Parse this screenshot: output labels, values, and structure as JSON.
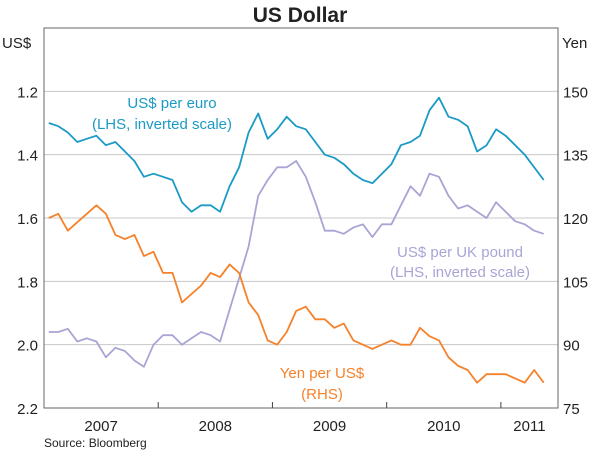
{
  "chart_data": {
    "type": "line",
    "title": "US Dollar",
    "source": "Source: Bloomberg",
    "left_axis": {
      "unit": "US$",
      "range": [
        1.0,
        2.2
      ],
      "inverted": true,
      "ticks": [
        "1.2",
        "1.4",
        "1.6",
        "1.8",
        "2.0",
        "2.2"
      ]
    },
    "right_axis": {
      "unit": "Yen",
      "range": [
        75,
        165
      ],
      "ticks": [
        "150",
        "135",
        "120",
        "105",
        "90",
        "75"
      ]
    },
    "x_axis": {
      "range": [
        2007.0,
        2011.5
      ],
      "tick_labels": [
        "2007",
        "2008",
        "2009",
        "2010",
        "2011"
      ]
    },
    "grid": true,
    "x_start": "2007-01",
    "frequency": "monthly",
    "series": [
      {
        "name": "US$ per euro",
        "note": "(LHS, inverted scale)",
        "axis": "left",
        "color": "#1b9ac6",
        "values": [
          1.3,
          1.31,
          1.33,
          1.36,
          1.35,
          1.34,
          1.37,
          1.36,
          1.39,
          1.42,
          1.47,
          1.46,
          1.47,
          1.48,
          1.55,
          1.58,
          1.56,
          1.56,
          1.58,
          1.5,
          1.44,
          1.33,
          1.27,
          1.35,
          1.32,
          1.28,
          1.31,
          1.32,
          1.36,
          1.4,
          1.41,
          1.43,
          1.46,
          1.48,
          1.49,
          1.46,
          1.43,
          1.37,
          1.36,
          1.34,
          1.26,
          1.22,
          1.28,
          1.29,
          1.31,
          1.39,
          1.37,
          1.32,
          1.34,
          1.37,
          1.4,
          1.44,
          1.48
        ]
      },
      {
        "name": "US$ per UK pound",
        "note": "(LHS, inverted scale)",
        "axis": "left",
        "color": "#a8a5d5",
        "values": [
          1.96,
          1.96,
          1.95,
          1.99,
          1.98,
          1.99,
          2.04,
          2.01,
          2.02,
          2.05,
          2.07,
          2.0,
          1.97,
          1.97,
          2.0,
          1.98,
          1.96,
          1.97,
          1.99,
          1.89,
          1.79,
          1.69,
          1.53,
          1.48,
          1.44,
          1.44,
          1.42,
          1.47,
          1.55,
          1.64,
          1.64,
          1.65,
          1.63,
          1.62,
          1.66,
          1.62,
          1.62,
          1.56,
          1.5,
          1.53,
          1.46,
          1.47,
          1.53,
          1.57,
          1.56,
          1.58,
          1.6,
          1.55,
          1.58,
          1.61,
          1.62,
          1.64,
          1.65
        ]
      },
      {
        "name": "Yen per US$",
        "note": "(RHS)",
        "axis": "right",
        "color": "#f5822a",
        "values": [
          120,
          121,
          117,
          119,
          121,
          123,
          121,
          116,
          115,
          116,
          111,
          112,
          107,
          107,
          100,
          102,
          104,
          107,
          106,
          109,
          107,
          100,
          97,
          91,
          90,
          93,
          98,
          99,
          96,
          96,
          94,
          95,
          91,
          90,
          89,
          90,
          91,
          90,
          90,
          94,
          92,
          91,
          87,
          85,
          84,
          81,
          83,
          83,
          83,
          82,
          81,
          84,
          81
        ]
      }
    ]
  }
}
